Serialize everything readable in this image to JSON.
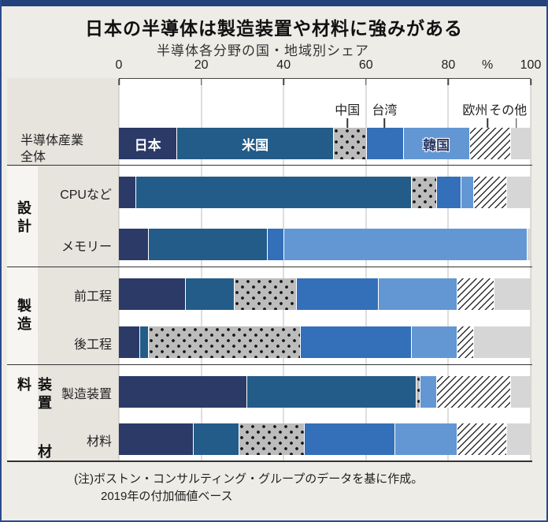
{
  "page": {
    "title": "日本の半導体は製造装置や材料に強みがある",
    "subtitle": "半導体各分野の国・地域別シェア",
    "note_line1": "(注)ボストン・コンサルティング・グループのデータを基に作成。",
    "note_line2": "2019年の付加価値ベース"
  },
  "colors": {
    "frame": "#2a4a8c",
    "topbar": "#24417c",
    "japan": "#2b3a67",
    "usa": "#235c88",
    "china_bg": "#bcbcbc",
    "taiwan": "#346fb9",
    "korea": "#6297d3",
    "europe_bg": "#ffffff",
    "others": "#d6d6d6",
    "gridline": "#bdbcb8",
    "side_panel": "#e7e4de"
  },
  "chart_data": {
    "type": "bar",
    "stacked": true,
    "orientation": "horizontal",
    "unit": "%",
    "xlim": [
      0,
      100
    ],
    "x_ticks": [
      0,
      20,
      40,
      60,
      80,
      100
    ],
    "percent_label": "%",
    "percent_x": 89.5,
    "series_order": [
      "japan",
      "usa",
      "china",
      "taiwan",
      "korea",
      "europe",
      "others"
    ],
    "series_labels": {
      "japan": "日本",
      "usa": "米国",
      "china": "中国",
      "taiwan": "台湾",
      "korea": "韓国",
      "europe": "欧州",
      "others": "その他"
    },
    "callouts": [
      {
        "key": "china",
        "label": "中国",
        "x": 55.5,
        "tick_x": 55.5
      },
      {
        "key": "taiwan",
        "label": "台湾",
        "x": 64.5,
        "tick_x": 64.5
      },
      {
        "key": "europe",
        "label": "欧州",
        "x": 86.5,
        "tick_x": 89.5
      },
      {
        "key": "others",
        "label": "その他",
        "x": 94.5,
        "tick_x": 96.5
      }
    ],
    "groups": [
      {
        "part1": "設計",
        "part2": ""
      },
      {
        "part1": "製造",
        "part2": ""
      },
      {
        "part1": "装置",
        "part2": "材料"
      }
    ],
    "rows": [
      {
        "group": "",
        "label": "半導体産業全体",
        "label_line1": "半導体産業",
        "label_line2": "全体",
        "values": {
          "japan": 14,
          "usa": 38,
          "china": 8,
          "taiwan": 9,
          "korea": 16,
          "europe": 10,
          "others": 5
        },
        "inline_labels": {
          "japan": "日本",
          "usa": "米国",
          "korea": "韓国"
        }
      },
      {
        "group": "設計",
        "label": "CPUなど",
        "values": {
          "japan": 4,
          "usa": 67,
          "china": 6,
          "taiwan": 6,
          "korea": 3,
          "europe": 8,
          "others": 6
        }
      },
      {
        "group": "設計",
        "label": "メモリー",
        "values": {
          "japan": 7,
          "usa": 29,
          "china": 0,
          "taiwan": 4,
          "korea": 59,
          "europe": 0,
          "others": 1
        }
      },
      {
        "group": "製造",
        "label": "前工程",
        "values": {
          "japan": 16,
          "usa": 12,
          "china": 15,
          "taiwan": 20,
          "korea": 19,
          "europe": 9,
          "others": 9
        }
      },
      {
        "group": "製造",
        "label": "後工程",
        "values": {
          "japan": 5,
          "usa": 2,
          "china": 37,
          "taiwan": 27,
          "korea": 11,
          "europe": 4,
          "others": 14
        }
      },
      {
        "group": "装置材料",
        "label": "製造装置",
        "values": {
          "japan": 31,
          "usa": 41,
          "china": 1,
          "taiwan": 0,
          "korea": 4,
          "europe": 18,
          "others": 5
        }
      },
      {
        "group": "装置材料",
        "label": "材料",
        "values": {
          "japan": 18,
          "usa": 11,
          "china": 16,
          "taiwan": 22,
          "korea": 15,
          "europe": 12,
          "others": 6
        }
      }
    ]
  }
}
